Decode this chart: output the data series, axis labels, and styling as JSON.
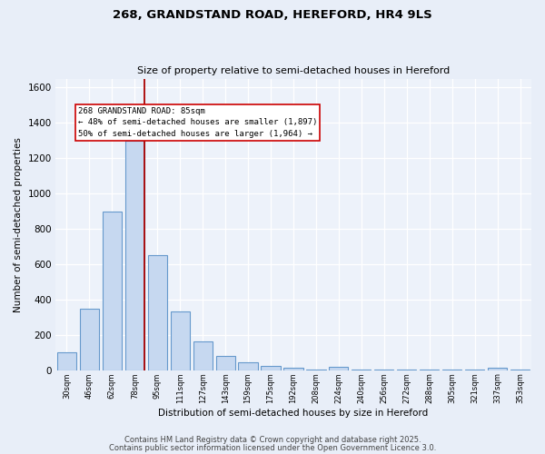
{
  "title_line1": "268, GRANDSTAND ROAD, HEREFORD, HR4 9LS",
  "title_line2": "Size of property relative to semi-detached houses in Hereford",
  "xlabel": "Distribution of semi-detached houses by size in Hereford",
  "ylabel": "Number of semi-detached properties",
  "bin_labels": [
    "30sqm",
    "46sqm",
    "62sqm",
    "78sqm",
    "95sqm",
    "111sqm",
    "127sqm",
    "143sqm",
    "159sqm",
    "175sqm",
    "192sqm",
    "208sqm",
    "224sqm",
    "240sqm",
    "256sqm",
    "272sqm",
    "288sqm",
    "305sqm",
    "321sqm",
    "337sqm",
    "353sqm"
  ],
  "bar_heights": [
    100,
    350,
    900,
    1300,
    650,
    330,
    165,
    80,
    45,
    25,
    15,
    5,
    20,
    5,
    5,
    5,
    5,
    5,
    5,
    15,
    5
  ],
  "bar_color": "#c6d8f0",
  "bar_edge_color": "#6699cc",
  "property_size_bin": 3,
  "red_line_color": "#aa0000",
  "annotation_line1": "268 GRANDSTAND ROAD: 85sqm",
  "annotation_line2": "← 48% of semi-detached houses are smaller (1,897)",
  "annotation_line3": "50% of semi-detached houses are larger (1,964) →",
  "ylim": [
    0,
    1650
  ],
  "yticks": [
    0,
    200,
    400,
    600,
    800,
    1000,
    1200,
    1400,
    1600
  ],
  "footer_line1": "Contains HM Land Registry data © Crown copyright and database right 2025.",
  "footer_line2": "Contains public sector information licensed under the Open Government Licence 3.0.",
  "background_color": "#e8eef8",
  "plot_background_color": "#edf2fa",
  "grid_color": "#ffffff"
}
